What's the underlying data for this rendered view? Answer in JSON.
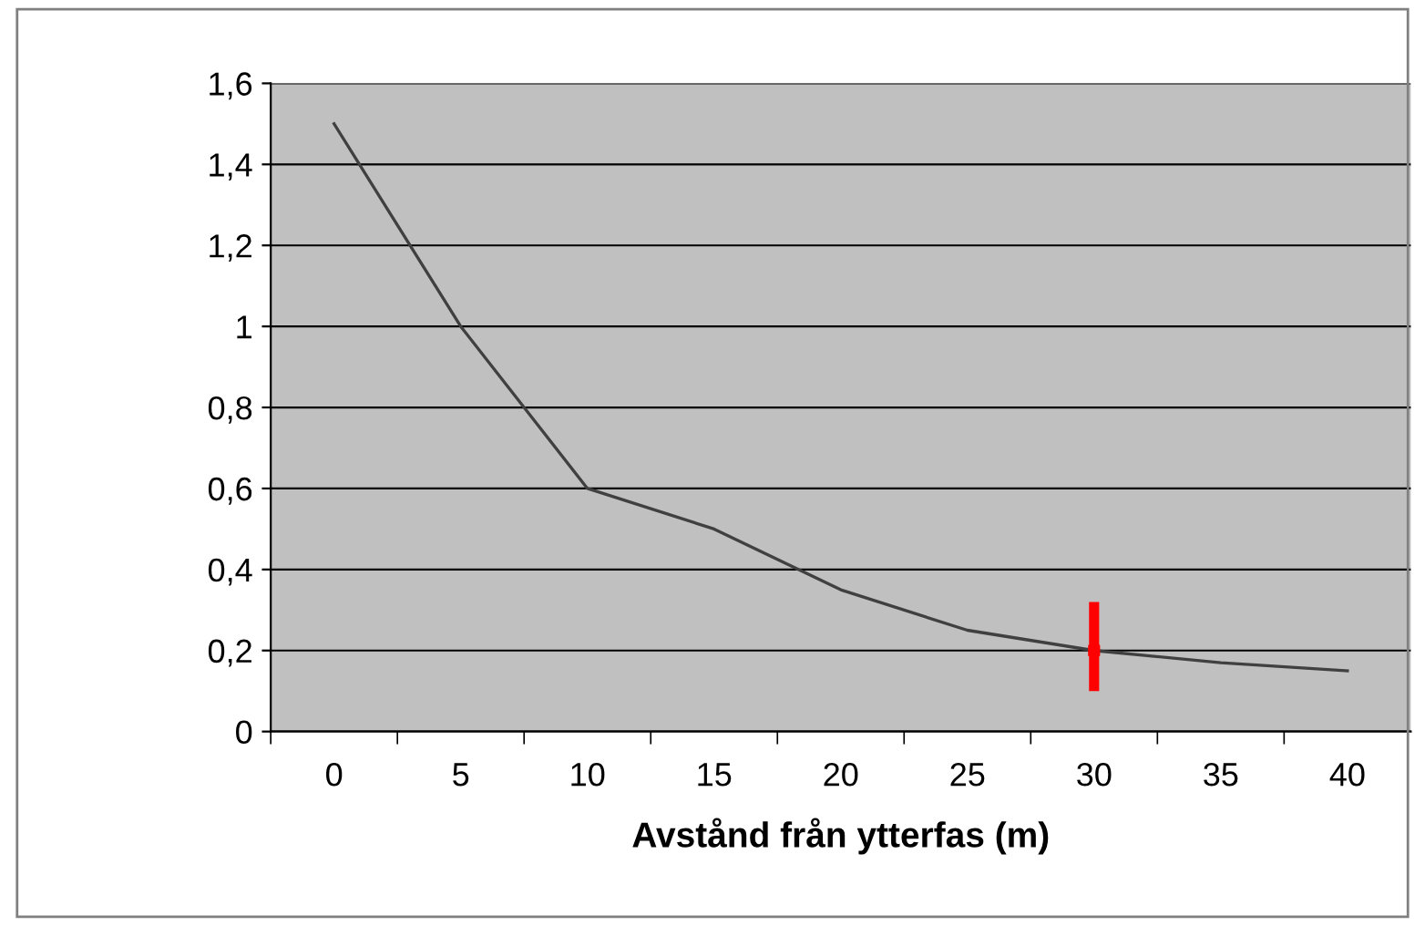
{
  "chart_data": {
    "type": "line",
    "xlabel": "Avstånd från ytterfas (m)",
    "categories": [
      "0",
      "5",
      "10",
      "15",
      "20",
      "25",
      "30",
      "35",
      "40"
    ],
    "series": [
      {
        "color": "#404040",
        "values": [
          1.5,
          1.0,
          0.6,
          0.5,
          0.35,
          0.25,
          0.2,
          0.17,
          0.15
        ]
      },
      {
        "type": "scatter",
        "color": "#ff0000",
        "x": [
          "30"
        ],
        "values": [
          0.2
        ],
        "errors": [
          [
            0.1,
            0.32
          ]
        ],
        "marker": "square"
      }
    ],
    "ylim": [
      0,
      1.6
    ],
    "yticks": [
      0,
      {
        "value": 0.2,
        "label": "0,2"
      },
      {
        "value": 0.4,
        "label": "0,4"
      },
      {
        "value": 0.6,
        "label": "0,6"
      },
      {
        "value": 0.8,
        "label": "0,8"
      },
      1,
      {
        "value": 1.2,
        "label": "1,2"
      },
      {
        "value": 1.4,
        "label": "1,4"
      },
      {
        "value": 1.6,
        "label": "1,6"
      }
    ],
    "grid": "y",
    "legend": false,
    "marker": "none",
    "line_style": "solid"
  }
}
